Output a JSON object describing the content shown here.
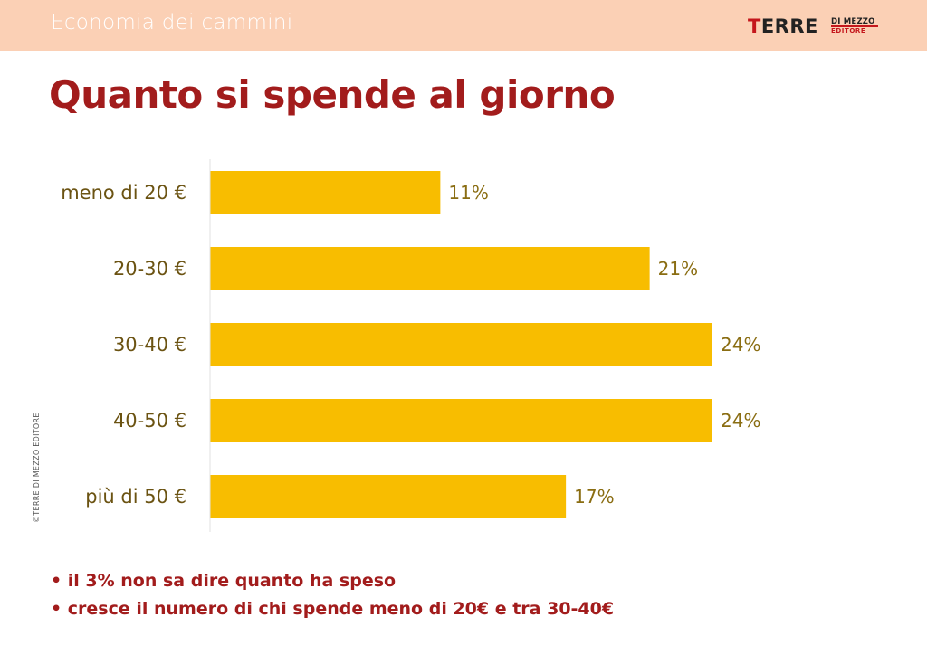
{
  "header": {
    "title": "Economia dei cammini",
    "logo": {
      "main_first": "T",
      "main_rest": "ERRE",
      "sub_top": "DI MEZZO",
      "sub_bottom": "EDITORE"
    }
  },
  "copyright": "©TERRE DI MEZZO EDITORE",
  "colors": {
    "bar": "#f8bd00",
    "title": "#a21c1c",
    "header": "#fbd0b5"
  },
  "chart_data": {
    "type": "bar",
    "orientation": "horizontal",
    "title": "Quanto si spende al giorno",
    "categories": [
      "meno di 20 €",
      "20-30 €",
      "30-40 €",
      "40-50 €",
      "più di 50 €"
    ],
    "values": [
      11,
      21,
      24,
      24,
      17
    ],
    "value_labels": [
      "11%",
      "21%",
      "24%",
      "24%",
      "17%"
    ],
    "unit": "%",
    "grid": false,
    "legend": "none"
  },
  "notes": [
    "• il 3% non sa dire quanto ha speso",
    "• cresce il numero di chi spende meno di 20€ e tra 30-40€"
  ]
}
